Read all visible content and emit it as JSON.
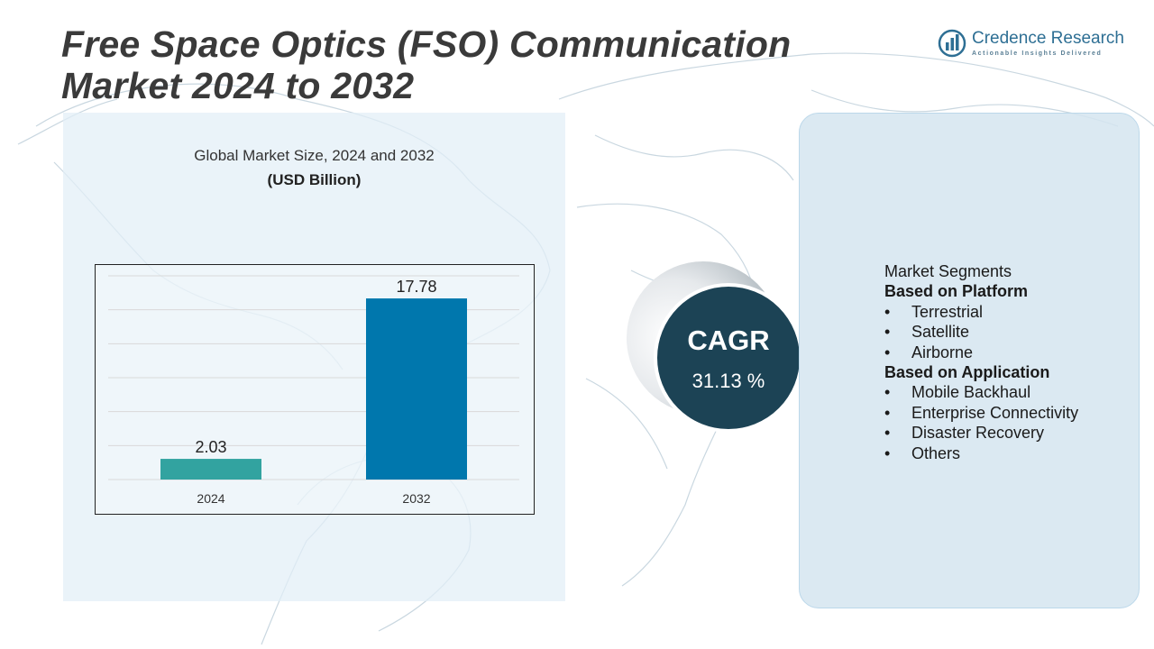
{
  "title": {
    "line1": "Free Space Optics (FSO) Communication",
    "line2": "Market 2024 to 2032"
  },
  "logo": {
    "name": "Credence Research",
    "tagline": "Actionable Insights Delivered",
    "icon": "bar-chart-globe-icon",
    "color": "#2e6f94"
  },
  "chart_data": {
    "type": "bar",
    "title": "Global Market Size, 2024 and 2032",
    "unit": "(USD Billion)",
    "categories": [
      "2024",
      "2032"
    ],
    "values": [
      2.03,
      17.78
    ],
    "data_labels": [
      "2.03",
      "17.78"
    ],
    "colors": [
      "#32a3a0",
      "#0077ad"
    ],
    "ylim": [
      0,
      20
    ],
    "grid": true,
    "legend": "none"
  },
  "cagr": {
    "label": "CAGR",
    "value": "31.13 %"
  },
  "segments": {
    "heading": "Market Segments",
    "groups": [
      {
        "title": "Based on Platform",
        "items": [
          "Terrestrial",
          "Satellite",
          "Airborne"
        ]
      },
      {
        "title": "Based on Application",
        "items": [
          "Mobile Backhaul",
          "Enterprise Connectivity",
          "Disaster Recovery",
          "Others"
        ]
      }
    ]
  }
}
